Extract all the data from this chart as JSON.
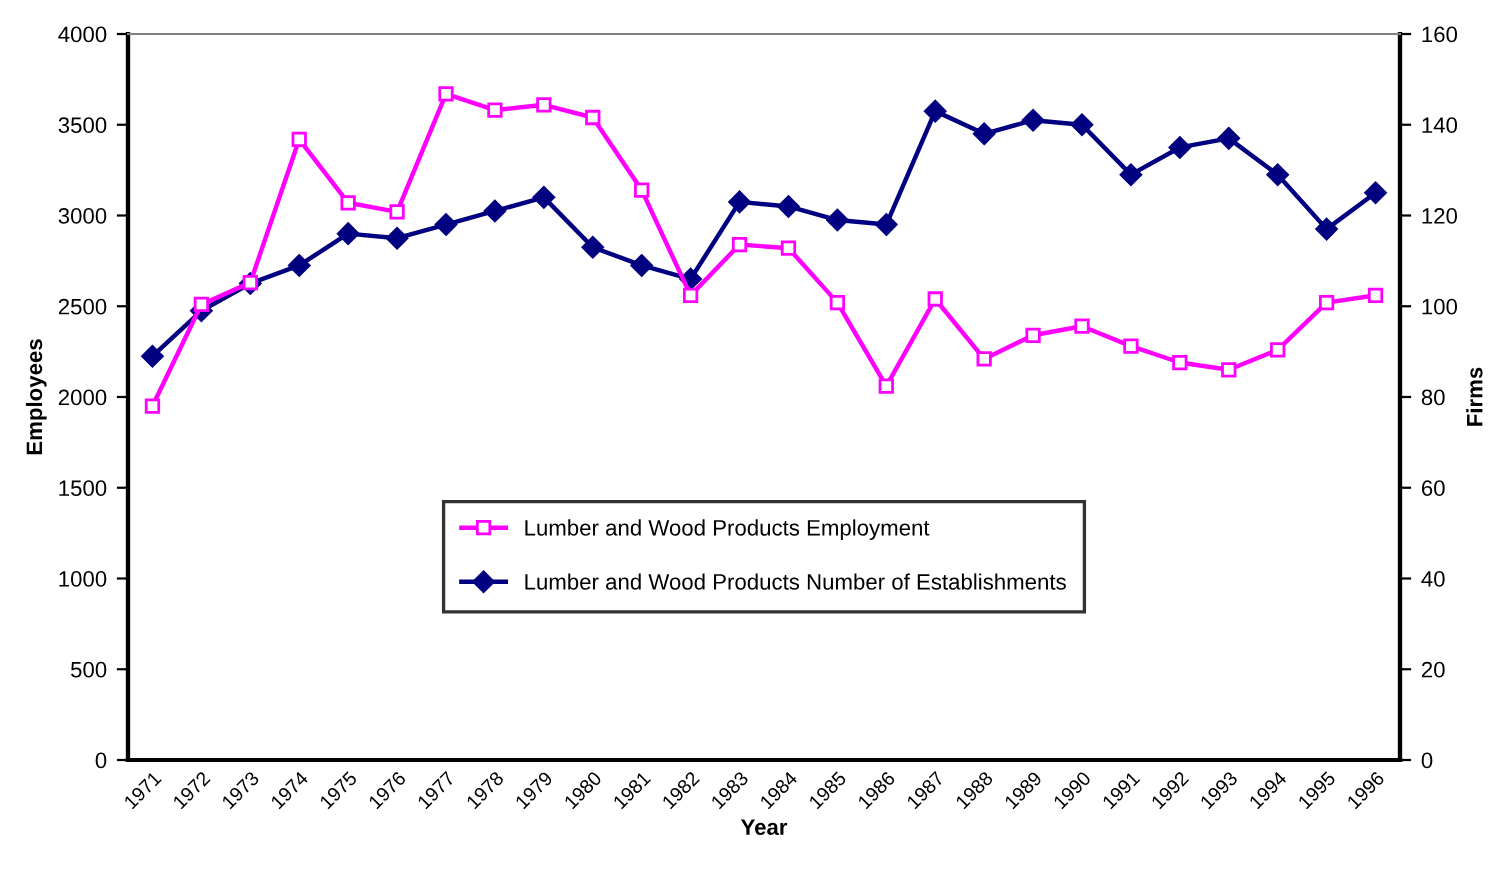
{
  "chart_data": {
    "type": "line",
    "xlabel": "Year",
    "ylabel": "Employees",
    "y2label": "Firms",
    "categories": [
      "1971",
      "1972",
      "1973",
      "1974",
      "1975",
      "1976",
      "1977",
      "1978",
      "1979",
      "1980",
      "1981",
      "1982",
      "1983",
      "1984",
      "1985",
      "1986",
      "1987",
      "1988",
      "1989",
      "1990",
      "1991",
      "1992",
      "1993",
      "1994",
      "1995",
      "1996"
    ],
    "series": [
      {
        "name": "Lumber and Wood Products Employment",
        "color": "#ff00ff",
        "marker": "square",
        "values": [
          1950,
          2510,
          2630,
          3420,
          3070,
          3020,
          3670,
          3580,
          3610,
          3540,
          3140,
          2560,
          2840,
          2820,
          2520,
          2060,
          2540,
          2210,
          2340,
          2390,
          2280,
          2190,
          2150,
          2260,
          2520,
          2560
        ]
      },
      {
        "name": "Lumber and Wood Products Number of Establishments",
        "color": "#000080",
        "marker": "diamond",
        "axis": "y2",
        "values": [
          89,
          99,
          105,
          109,
          116,
          115,
          118,
          121,
          124,
          113,
          109,
          106,
          123,
          122,
          119,
          118,
          143,
          138,
          141,
          140,
          129,
          135,
          137,
          129,
          117,
          125
        ]
      }
    ],
    "ylim": [
      0,
      4000
    ],
    "yticks": [
      0,
      500,
      1000,
      1500,
      2000,
      2500,
      3000,
      3500,
      4000
    ],
    "y2lim": [
      0,
      160
    ],
    "y2ticks": [
      0,
      20,
      40,
      60,
      80,
      100,
      120,
      140,
      160
    ],
    "grid": false,
    "legend": "center",
    "line_style": "solid"
  }
}
